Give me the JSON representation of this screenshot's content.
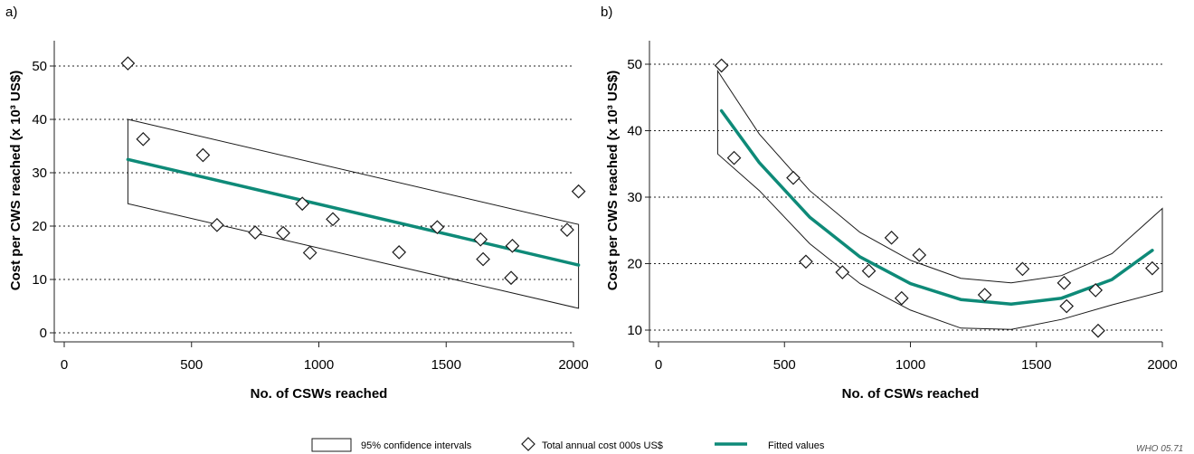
{
  "figure": {
    "credit": "WHO 05.71"
  },
  "legend": [
    {
      "kind": "band",
      "label": "95% confidence intervals"
    },
    {
      "kind": "marker",
      "label": "Total annual cost 000s US$"
    },
    {
      "kind": "line",
      "label": "Fitted values"
    }
  ],
  "colors": {
    "fit": "#0e8a78",
    "grid": "#222222",
    "axis": "#222222",
    "marker_stroke": "#1a1a1a",
    "band_stroke": "#1a1a1a"
  },
  "chart_data": [
    {
      "panel": "a)",
      "type": "scatter",
      "title": "",
      "xlabel": "No. of CSWs reached",
      "ylabel": "Cost per CWS reached (x 10³ US$)",
      "xlim": [
        0,
        2000
      ],
      "ylim": [
        -1,
        55
      ],
      "xticks": [
        0,
        500,
        1000,
        1500,
        2000
      ],
      "yticks": [
        0,
        10,
        20,
        30,
        40,
        50
      ],
      "grid": "horizontal dotted",
      "points": [
        {
          "x": 250,
          "y": 50.5
        },
        {
          "x": 310,
          "y": 36.3
        },
        {
          "x": 545,
          "y": 33.3
        },
        {
          "x": 600,
          "y": 20.2
        },
        {
          "x": 750,
          "y": 18.8
        },
        {
          "x": 860,
          "y": 18.7
        },
        {
          "x": 935,
          "y": 24.2
        },
        {
          "x": 965,
          "y": 15.0
        },
        {
          "x": 1055,
          "y": 21.3
        },
        {
          "x": 1315,
          "y": 15.1
        },
        {
          "x": 1465,
          "y": 19.8
        },
        {
          "x": 1635,
          "y": 17.5
        },
        {
          "x": 1645,
          "y": 13.8
        },
        {
          "x": 1760,
          "y": 16.3
        },
        {
          "x": 1755,
          "y": 10.3
        },
        {
          "x": 1975,
          "y": 19.3
        },
        {
          "x": 2020,
          "y": 26.5
        }
      ],
      "fit": {
        "x": [
          250,
          2020
        ],
        "y": [
          32.5,
          12.7
        ]
      },
      "ci_upper": {
        "x": [
          250,
          2020
        ],
        "y": [
          40.0,
          20.3
        ]
      },
      "ci_lower": {
        "x": [
          250,
          2020
        ],
        "y": [
          24.2,
          4.6
        ]
      }
    },
    {
      "panel": "b)",
      "type": "scatter",
      "title": "",
      "xlabel": "No. of CSWs reached",
      "ylabel": "Cost per CWS reached (x 10³ US$)",
      "xlim": [
        0,
        2000
      ],
      "ylim": [
        10,
        51
      ],
      "xticks": [
        0,
        500,
        1000,
        1500,
        2000
      ],
      "yticks": [
        10,
        20,
        30,
        40,
        50
      ],
      "grid": "horizontal dotted",
      "points": [
        {
          "x": 250,
          "y": 49.8
        },
        {
          "x": 300,
          "y": 35.9
        },
        {
          "x": 535,
          "y": 32.9
        },
        {
          "x": 585,
          "y": 20.3
        },
        {
          "x": 730,
          "y": 18.7
        },
        {
          "x": 835,
          "y": 18.9
        },
        {
          "x": 925,
          "y": 23.9
        },
        {
          "x": 965,
          "y": 14.8
        },
        {
          "x": 1035,
          "y": 21.3
        },
        {
          "x": 1295,
          "y": 15.3
        },
        {
          "x": 1445,
          "y": 19.2
        },
        {
          "x": 1610,
          "y": 17.1
        },
        {
          "x": 1620,
          "y": 13.6
        },
        {
          "x": 1735,
          "y": 16.0
        },
        {
          "x": 1745,
          "y": 9.9
        },
        {
          "x": 1960,
          "y": 19.3
        }
      ],
      "fit": {
        "x": [
          250,
          400,
          600,
          800,
          1000,
          1200,
          1400,
          1600,
          1800,
          1960
        ],
        "y": [
          43.0,
          35.2,
          27.0,
          21.0,
          17.0,
          14.6,
          13.9,
          14.8,
          17.6,
          22.0
        ]
      },
      "ci_upper": {
        "x": [
          235,
          400,
          600,
          800,
          1000,
          1200,
          1400,
          1600,
          1800,
          2000
        ],
        "y": [
          49.0,
          39.5,
          31.0,
          24.7,
          20.5,
          17.8,
          17.1,
          18.2,
          21.5,
          28.3
        ]
      },
      "ci_lower": {
        "x": [
          235,
          400,
          600,
          800,
          1000,
          1200,
          1400,
          1600,
          1800,
          2000
        ],
        "y": [
          36.5,
          31.0,
          23.0,
          17.0,
          13.0,
          10.3,
          10.1,
          11.6,
          13.8,
          15.8
        ]
      }
    }
  ]
}
